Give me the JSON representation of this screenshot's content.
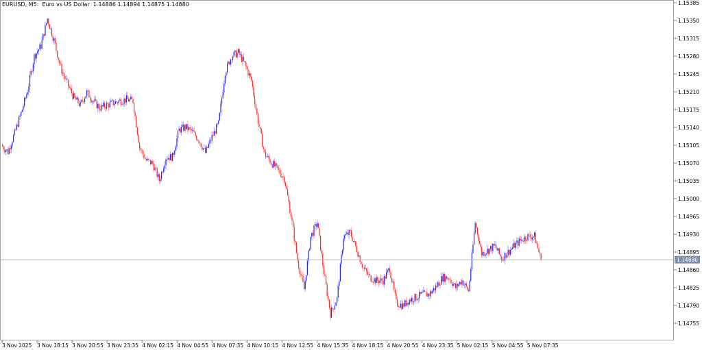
{
  "header": {
    "symbol": "EURUSD, M5:",
    "description": "Euro vs US Dollar",
    "ohlc": "1.14886 1.14894 1.14875 1.14880"
  },
  "chart_data": {
    "type": "candlestick",
    "title": "EURUSD, M5:  Euro vs US Dollar",
    "timeframe": "M5",
    "sample_interval": "30 min",
    "colors": {
      "bull": "#2a2aff",
      "bear": "#ff2a2a",
      "grid_border": "#a0a0a0",
      "price_label_bg": "#7f8ea6"
    },
    "ylim": [
      1.1473,
      1.1539
    ],
    "y_ticks": [
      "1.15385",
      "1.15350",
      "1.15315",
      "1.15280",
      "1.15245",
      "1.15210",
      "1.15175",
      "1.15140",
      "1.15105",
      "1.15070",
      "1.15035",
      "1.15000",
      "1.14965",
      "1.14930",
      "1.14895",
      "1.14860",
      "1.14825",
      "1.14790",
      "1.14755"
    ],
    "x_ticks": [
      "3 Nov 2025",
      "3 Nov 18:15",
      "3 Nov 20:55",
      "3 Nov 23:35",
      "4 Nov 02:15",
      "4 Nov 04:55",
      "4 Nov 07:35",
      "4 Nov 10:15",
      "4 Nov 12:55",
      "4 Nov 15:35",
      "4 Nov 18:15",
      "4 Nov 20:55",
      "4 Nov 23:35",
      "5 Nov 02:15",
      "5 Nov 04:55",
      "5 Nov 07:35"
    ],
    "current_price": "1.14880",
    "closes": [
      1.15105,
      1.15092,
      1.15128,
      1.15168,
      1.15213,
      1.1528,
      1.153,
      1.15354,
      1.15311,
      1.15258,
      1.15226,
      1.15199,
      1.15184,
      1.15209,
      1.15191,
      1.15178,
      1.15184,
      1.15188,
      1.15192,
      1.15195,
      1.15192,
      1.15101,
      1.15075,
      1.15069,
      1.15036,
      1.15081,
      1.15082,
      1.15135,
      1.15141,
      1.15131,
      1.15116,
      1.1509,
      1.15121,
      1.15147,
      1.15249,
      1.1528,
      1.15287,
      1.15264,
      1.15232,
      1.15152,
      1.15088,
      1.15071,
      1.15057,
      1.1504,
      1.14968,
      1.14879,
      1.14822,
      1.14925,
      1.14953,
      1.14855,
      1.14774,
      1.14803,
      1.14925,
      1.14933,
      1.149,
      1.14864,
      1.14845,
      1.14839,
      1.14839,
      1.14863,
      1.14795,
      1.1479,
      1.14801,
      1.14806,
      1.14812,
      1.14812,
      1.14826,
      1.14845,
      1.14845,
      1.14825,
      1.14839,
      1.14818,
      1.14953,
      1.14892,
      1.14899,
      1.14907,
      1.14882,
      1.14895,
      1.14908,
      1.14919,
      1.14926,
      1.14926,
      1.1488
    ]
  }
}
